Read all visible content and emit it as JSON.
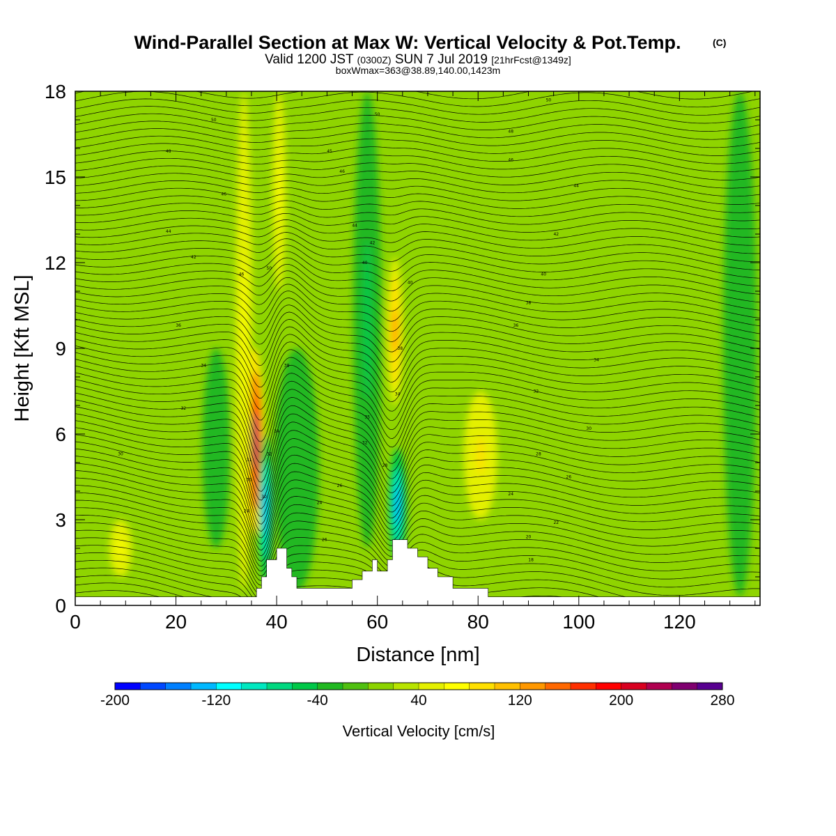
{
  "title": "Wind-Parallel Section at Max W: Vertical Velocity & Pot.Temp.",
  "title_mark": "(C)",
  "subtitle_valid": "Valid 1200 JST",
  "subtitle_utc": "(0300Z)",
  "subtitle_date": "SUN 7 Jul 2019",
  "subtitle_fcst": "[21hrFcst@1349z]",
  "subtitle_box": "boxWmax=363@38.89,140.00,1423m",
  "colors": {
    "background_fill": "#8fd400",
    "terrain": "#ffffff",
    "contour": "#000000"
  },
  "chart_data": {
    "type": "heatmap",
    "xlabel": "Distance [nm]",
    "ylabel": "Height [Kft MSL]",
    "xlim": [
      0,
      136
    ],
    "ylim": [
      0,
      18
    ],
    "xticks": [
      0,
      20,
      40,
      60,
      80,
      100,
      120
    ],
    "xtick_labels": [
      "0",
      "20",
      "40",
      "60",
      "80",
      "100",
      "120"
    ],
    "yticks": [
      0,
      3,
      6,
      9,
      12,
      15,
      18
    ],
    "ytick_labels": [
      "0",
      "3",
      "6",
      "9",
      "12",
      "15",
      "18"
    ],
    "colorbar": {
      "label": "Vertical Velocity [cm/s]",
      "min": -200,
      "max": 280,
      "step": 20,
      "tick_values": [
        -200,
        -120,
        -40,
        40,
        120,
        200,
        280
      ],
      "tick_labels": [
        "-200",
        "-120",
        "-40",
        "40",
        "120",
        "200",
        "280"
      ],
      "colors": [
        "#0000ff",
        "#0048ff",
        "#0080ff",
        "#00b8ff",
        "#00ffff",
        "#00e8c0",
        "#00d880",
        "#00c848",
        "#20b820",
        "#50c010",
        "#8cd400",
        "#b8e400",
        "#e4f000",
        "#ffff00",
        "#ffe000",
        "#ffc000",
        "#ff9800",
        "#ff6800",
        "#ff3000",
        "#ff0000",
        "#d80020",
        "#b00050",
        "#800070",
        "#580090"
      ]
    },
    "vertical_velocity_features": [
      {
        "x": 35.7,
        "y0": 2.5,
        "y1": 9.0,
        "width": 1.6,
        "value": 220
      },
      {
        "x": 33.5,
        "y0": 0.5,
        "y1": 18.0,
        "width": 1.5,
        "value": 50
      },
      {
        "x": 37.8,
        "y0": 0.7,
        "y1": 6.0,
        "width": 1.3,
        "value": -130
      },
      {
        "x": 40.5,
        "y0": 11.0,
        "y1": 18.0,
        "width": 1.2,
        "value": 50
      },
      {
        "x": 57.5,
        "y0": 4.5,
        "y1": 9.0,
        "width": 1.5,
        "value": 110
      },
      {
        "x": 63.5,
        "y0": 7.0,
        "y1": 12.2,
        "width": 1.4,
        "value": 120
      },
      {
        "x": 64.0,
        "y0": 1.5,
        "y1": 5.5,
        "width": 1.6,
        "value": -120
      },
      {
        "x": 80.5,
        "y0": 3.0,
        "y1": 7.5,
        "width": 3.0,
        "value": 60
      },
      {
        "x": 9.0,
        "y0": 1.0,
        "y1": 3.0,
        "width": 2.0,
        "value": 40
      },
      {
        "x": 44.0,
        "y0": 0.5,
        "y1": 9.0,
        "width": 4.0,
        "value": -30
      },
      {
        "x": 58.0,
        "y0": 2.0,
        "y1": 18.0,
        "width": 2.5,
        "value": -40
      },
      {
        "x": 28.0,
        "y0": 2.0,
        "y1": 9.0,
        "width": 2.5,
        "value": -30
      },
      {
        "x": 132.0,
        "y0": 0.3,
        "y1": 18.0,
        "width": 3.0,
        "value": -30
      }
    ],
    "terrain_profile": {
      "x": [
        0,
        36,
        36,
        37,
        37,
        38,
        38,
        40,
        40,
        42,
        42,
        43,
        43,
        44,
        44,
        55,
        55,
        57,
        57,
        59,
        59,
        60,
        60,
        62,
        62,
        63,
        63,
        66,
        66,
        68,
        68,
        70,
        70,
        72,
        72,
        75,
        75,
        82,
        82,
        136
      ],
      "y": [
        0.3,
        0.3,
        0.6,
        0.6,
        1.0,
        1.0,
        1.6,
        1.6,
        2.0,
        2.0,
        1.3,
        1.3,
        1.0,
        1.0,
        0.6,
        0.6,
        0.9,
        0.9,
        1.2,
        1.2,
        1.6,
        1.6,
        1.2,
        1.2,
        1.6,
        1.6,
        2.3,
        2.3,
        2.0,
        2.0,
        1.7,
        1.7,
        1.3,
        1.3,
        1.0,
        1.0,
        0.6,
        0.6,
        0.3,
        0.3
      ]
    },
    "potential_temperature": {
      "units": "C",
      "levels_count": 70,
      "labels": [
        {
          "x": 9,
          "y": 5.3,
          "text": "30"
        },
        {
          "x": 21.5,
          "y": 6.9,
          "text": "32"
        },
        {
          "x": 25.5,
          "y": 8.4,
          "text": "34"
        },
        {
          "x": 20.5,
          "y": 9.8,
          "text": "36"
        },
        {
          "x": 23.5,
          "y": 12.2,
          "text": "42"
        },
        {
          "x": 18.5,
          "y": 13.1,
          "text": "44"
        },
        {
          "x": 29.5,
          "y": 14.4,
          "text": "46"
        },
        {
          "x": 18.5,
          "y": 15.9,
          "text": "48"
        },
        {
          "x": 27.5,
          "y": 17.0,
          "text": "50"
        },
        {
          "x": 33,
          "y": 11.6,
          "text": "46"
        },
        {
          "x": 38.5,
          "y": 11.8,
          "text": "50"
        },
        {
          "x": 42,
          "y": 8.4,
          "text": "38"
        },
        {
          "x": 40,
          "y": 6.1,
          "text": "34"
        },
        {
          "x": 38.5,
          "y": 5.3,
          "text": "32"
        },
        {
          "x": 34.5,
          "y": 5.1,
          "text": "31"
        },
        {
          "x": 34.5,
          "y": 4.4,
          "text": "30"
        },
        {
          "x": 37.5,
          "y": 3.8,
          "text": "30"
        },
        {
          "x": 34,
          "y": 3.3,
          "text": "24"
        },
        {
          "x": 48.5,
          "y": 3.6,
          "text": "24"
        },
        {
          "x": 52.5,
          "y": 4.2,
          "text": "26"
        },
        {
          "x": 49.5,
          "y": 2.3,
          "text": "26"
        },
        {
          "x": 50.5,
          "y": 15.9,
          "text": "45"
        },
        {
          "x": 53,
          "y": 15.2,
          "text": "46"
        },
        {
          "x": 55.5,
          "y": 13.3,
          "text": "44"
        },
        {
          "x": 59,
          "y": 12.7,
          "text": "42"
        },
        {
          "x": 57.5,
          "y": 12.0,
          "text": "40"
        },
        {
          "x": 60,
          "y": 17.2,
          "text": "50"
        },
        {
          "x": 58,
          "y": 6.6,
          "text": "35"
        },
        {
          "x": 57.5,
          "y": 5.7,
          "text": "32"
        },
        {
          "x": 61.5,
          "y": 4.9,
          "text": "28"
        },
        {
          "x": 64,
          "y": 7.4,
          "text": "34"
        },
        {
          "x": 64.5,
          "y": 9.0,
          "text": "38"
        },
        {
          "x": 66.5,
          "y": 11.3,
          "text": "40"
        },
        {
          "x": 94,
          "y": 17.7,
          "text": "50"
        },
        {
          "x": 86.5,
          "y": 16.6,
          "text": "48"
        },
        {
          "x": 86.5,
          "y": 15.6,
          "text": "46"
        },
        {
          "x": 99.5,
          "y": 14.7,
          "text": "44"
        },
        {
          "x": 95.5,
          "y": 13.0,
          "text": "42"
        },
        {
          "x": 93,
          "y": 11.6,
          "text": "40"
        },
        {
          "x": 90,
          "y": 10.6,
          "text": "38"
        },
        {
          "x": 87.5,
          "y": 9.8,
          "text": "36"
        },
        {
          "x": 103.5,
          "y": 8.6,
          "text": "34"
        },
        {
          "x": 91.5,
          "y": 7.5,
          "text": "32"
        },
        {
          "x": 102,
          "y": 6.2,
          "text": "30"
        },
        {
          "x": 92,
          "y": 5.3,
          "text": "28"
        },
        {
          "x": 98,
          "y": 4.5,
          "text": "26"
        },
        {
          "x": 86.5,
          "y": 3.9,
          "text": "24"
        },
        {
          "x": 95.5,
          "y": 2.9,
          "text": "22"
        },
        {
          "x": 90,
          "y": 2.4,
          "text": "20"
        },
        {
          "x": 90.5,
          "y": 1.6,
          "text": "18"
        }
      ]
    }
  }
}
